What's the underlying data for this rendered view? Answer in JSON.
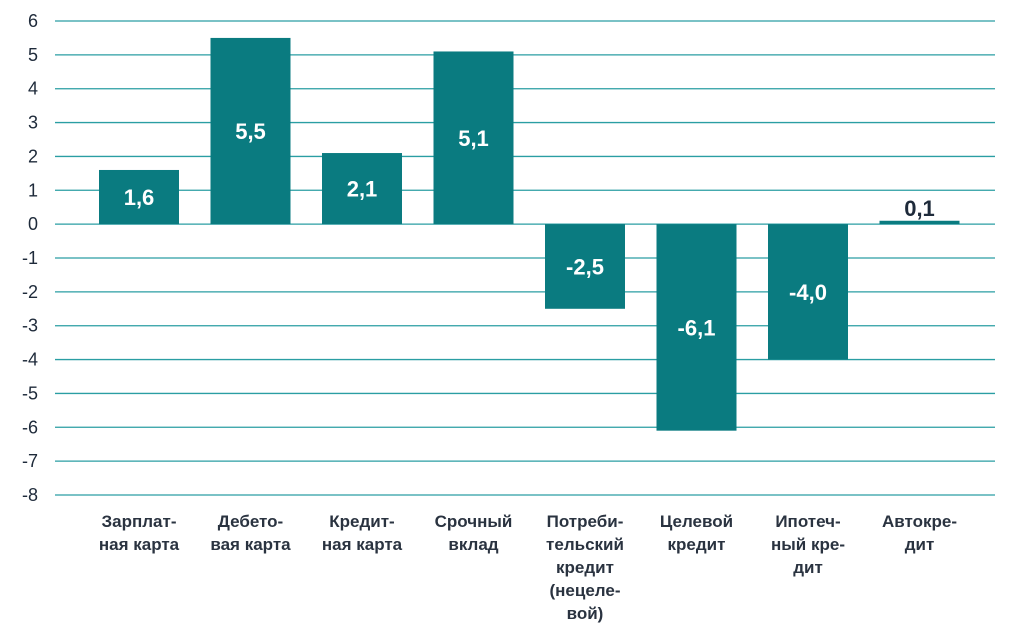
{
  "chart_data": {
    "type": "bar",
    "categories": [
      [
        "Зарплат-",
        "ная карта"
      ],
      [
        "Дебето-",
        "вая карта"
      ],
      [
        "Кредит-",
        "ная карта"
      ],
      [
        "Срочный",
        "вклад"
      ],
      [
        "Потреби-",
        "тельский",
        "кредит",
        "(нецеле-",
        "вой)"
      ],
      [
        "Целевой",
        "кредит"
      ],
      [
        "Ипотеч-",
        "ный кре-",
        "дит"
      ],
      [
        "Автокре-",
        "дит"
      ]
    ],
    "values": [
      1.6,
      5.5,
      2.1,
      5.1,
      -2.5,
      -6.1,
      -4.0,
      0.1
    ],
    "data_labels": [
      "1,6",
      "5,5",
      "2,1",
      "5,1",
      "-2,5",
      "-6,1",
      "-4,0",
      "0,1"
    ],
    "yticks": [
      "6",
      "5",
      "4",
      "3",
      "2",
      "1",
      "0",
      "-1",
      "-2",
      "-3",
      "-4",
      "-5",
      "-6",
      "-7",
      "-8"
    ],
    "ylim": [
      -8,
      6
    ],
    "grid": true,
    "bar_color": "#0a7b80",
    "grid_color": "#2a9ea3",
    "label_color_inside": "#ffffff",
    "label_color_outside": "#1e2a3a"
  }
}
